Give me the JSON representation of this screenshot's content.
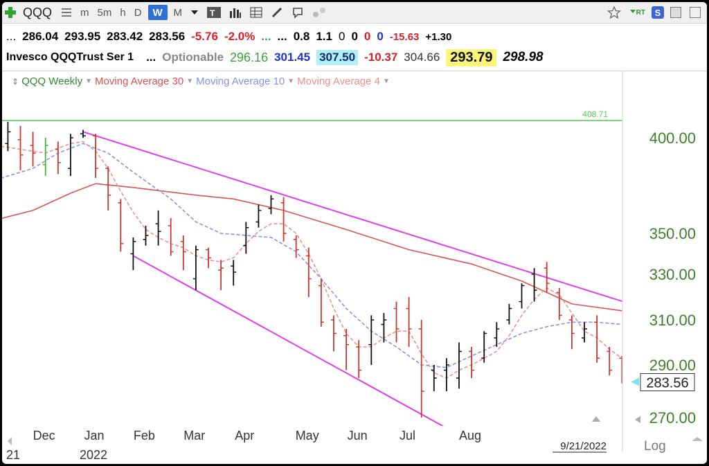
{
  "toolbar": {
    "symbol": "QQQ",
    "timeframes": [
      "m",
      "5m",
      "h",
      "D",
      "W",
      "M"
    ],
    "active_timeframe": "W",
    "icons": [
      "add-plus-icon",
      "list-icon",
      "dropdown-icon",
      "text-tool-icon",
      "bars-icon",
      "grid-icon",
      "pencil-icon",
      "annotate-icon",
      "dots-icon",
      "star-icon",
      "rt-icon",
      "s-icon",
      "save-icon",
      "close-icon"
    ],
    "rt_label": "RT",
    "s_label": "S"
  },
  "quote_row1": {
    "lead": "...",
    "open": "286.04",
    "high": "293.95",
    "low": "283.42",
    "close": "283.56",
    "change": "-5.76",
    "change_pct": "-2.0%",
    "dots_green": "...",
    "dots": "...",
    "v1": "0.8",
    "v2": "1.1",
    "z1": "0",
    "z2": "0",
    "z3": "0",
    "z4": "0",
    "v3": "-15.63",
    "v4": "+1.30"
  },
  "quote_row2": {
    "name": "Invesco QQQTrust Ser 1",
    "dots": "...",
    "optionable": "Optionable",
    "v1": "296.16",
    "v2": "301.45",
    "v3": "307.50",
    "v4": "-10.37",
    "v5": "304.66",
    "v6": "293.79",
    "v7": "298.98"
  },
  "legend": {
    "items": [
      "QQQ Weekly",
      "Moving Average 30",
      "Moving Average 10",
      "Moving Average 4"
    ],
    "colors": [
      "#2f8a2f",
      "#d9534f",
      "#8a8fe6",
      "#ef8f8f"
    ]
  },
  "chart_data": {
    "type": "line",
    "title": "",
    "xlabel": "",
    "ylabel": "",
    "ylim": [
      265,
      420
    ],
    "y_ticks": [
      400,
      350,
      330,
      310,
      290,
      270
    ],
    "y_tick_labels": [
      "400.00",
      "350.00",
      "330.00",
      "310.00",
      "290.00",
      "270.00"
    ],
    "x_labels": [
      "Dec",
      "Jan",
      "Feb",
      "Mar",
      "Apr",
      "May",
      "Jun",
      "Jul",
      "Aug"
    ],
    "x_label_week": [
      -3,
      1,
      5,
      9,
      13,
      18,
      22,
      26,
      31
    ],
    "year_labels": [
      "21",
      "2022"
    ],
    "date_stamp": "9/21/2022",
    "scale_toggle": "Log",
    "price_label": "283.56",
    "ceiling_value": 408.71,
    "ceiling_label": "408.71",
    "bars": [
      {
        "w": -6,
        "h": 404,
        "l": 392,
        "c": 396,
        "o": 399,
        "col": "green"
      },
      {
        "w": -5,
        "h": 408,
        "l": 393,
        "c": 403,
        "o": 397,
        "col": "black"
      },
      {
        "w": -4,
        "h": 406,
        "l": 383,
        "c": 391,
        "o": 399,
        "col": "red"
      },
      {
        "w": -3,
        "h": 403,
        "l": 385,
        "c": 392,
        "o": 396,
        "col": "red"
      },
      {
        "w": -2,
        "h": 400,
        "l": 380,
        "c": 396,
        "o": 386,
        "col": "green"
      },
      {
        "w": -1,
        "h": 398,
        "l": 381,
        "c": 387,
        "o": 394,
        "col": "red"
      },
      {
        "w": 0,
        "h": 402,
        "l": 380,
        "c": 400,
        "o": 384,
        "col": "black"
      },
      {
        "w": 1,
        "h": 404,
        "l": 400,
        "c": 401,
        "o": 402,
        "col": "black"
      },
      {
        "w": 2,
        "h": 402,
        "l": 379,
        "c": 384,
        "o": 401,
        "col": "red"
      },
      {
        "w": 3,
        "h": 385,
        "l": 362,
        "c": 370,
        "o": 384,
        "col": "red"
      },
      {
        "w": 4,
        "h": 368,
        "l": 341,
        "c": 345,
        "o": 366,
        "col": "red"
      },
      {
        "w": 5,
        "h": 348,
        "l": 332,
        "c": 346,
        "o": 340,
        "col": "black"
      },
      {
        "w": 6,
        "h": 354,
        "l": 344,
        "c": 349,
        "o": 347,
        "col": "black"
      },
      {
        "w": 7,
        "h": 362,
        "l": 344,
        "c": 351,
        "o": 355,
        "col": "black"
      },
      {
        "w": 8,
        "h": 358,
        "l": 339,
        "c": 341,
        "o": 354,
        "col": "red"
      },
      {
        "w": 9,
        "h": 349,
        "l": 332,
        "c": 341,
        "o": 346,
        "col": "red"
      },
      {
        "w": 10,
        "h": 344,
        "l": 323,
        "c": 342,
        "o": 328,
        "col": "black"
      },
      {
        "w": 11,
        "h": 343,
        "l": 333,
        "c": 338,
        "o": 342,
        "col": "red"
      },
      {
        "w": 12,
        "h": 337,
        "l": 323,
        "c": 333,
        "o": 332,
        "col": "red"
      },
      {
        "w": 13,
        "h": 337,
        "l": 325,
        "c": 331,
        "o": 334,
        "col": "black"
      },
      {
        "w": 14,
        "h": 356,
        "l": 340,
        "c": 353,
        "o": 344,
        "col": "black"
      },
      {
        "w": 15,
        "h": 365,
        "l": 353,
        "c": 362,
        "o": 356,
        "col": "black"
      },
      {
        "w": 16,
        "h": 370,
        "l": 360,
        "c": 368,
        "o": 363,
        "col": "black"
      },
      {
        "w": 17,
        "h": 369,
        "l": 346,
        "c": 350,
        "o": 366,
        "col": "red"
      },
      {
        "w": 18,
        "h": 349,
        "l": 338,
        "c": 342,
        "o": 347,
        "col": "red"
      },
      {
        "w": 19,
        "h": 343,
        "l": 320,
        "c": 328,
        "o": 339,
        "col": "red"
      },
      {
        "w": 20,
        "h": 328,
        "l": 307,
        "c": 309,
        "o": 325,
        "col": "red"
      },
      {
        "w": 21,
        "h": 312,
        "l": 296,
        "c": 304,
        "o": 310,
        "col": "red"
      },
      {
        "w": 22,
        "h": 306,
        "l": 288,
        "c": 299,
        "o": 303,
        "col": "red"
      },
      {
        "w": 23,
        "h": 301,
        "l": 285,
        "c": 288,
        "o": 298,
        "col": "red"
      },
      {
        "w": 24,
        "h": 312,
        "l": 290,
        "c": 310,
        "o": 299,
        "col": "black"
      },
      {
        "w": 25,
        "h": 313,
        "l": 300,
        "c": 310,
        "o": 308,
        "col": "black"
      },
      {
        "w": 26,
        "h": 318,
        "l": 300,
        "c": 306,
        "o": 315,
        "col": "red"
      },
      {
        "w": 27,
        "h": 320,
        "l": 298,
        "c": 306,
        "o": 315,
        "col": "red"
      },
      {
        "w": 28,
        "h": 310,
        "l": 270,
        "c": 280,
        "o": 306,
        "col": "red"
      },
      {
        "w": 29,
        "h": 290,
        "l": 280,
        "c": 285,
        "o": 288,
        "col": "black"
      },
      {
        "w": 30,
        "h": 293,
        "l": 280,
        "c": 290,
        "o": 288,
        "col": "black"
      },
      {
        "w": 31,
        "h": 300,
        "l": 281,
        "c": 296,
        "o": 285,
        "col": "black"
      },
      {
        "w": 32,
        "h": 298,
        "l": 285,
        "c": 288,
        "o": 296,
        "col": "red"
      },
      {
        "w": 33,
        "h": 305,
        "l": 291,
        "c": 304,
        "o": 293,
        "col": "black"
      },
      {
        "w": 34,
        "h": 309,
        "l": 298,
        "c": 306,
        "o": 302,
        "col": "black"
      },
      {
        "w": 35,
        "h": 317,
        "l": 308,
        "c": 315,
        "o": 310,
        "col": "black"
      },
      {
        "w": 36,
        "h": 326,
        "l": 315,
        "c": 325,
        "o": 318,
        "col": "black"
      },
      {
        "w": 37,
        "h": 333,
        "l": 318,
        "c": 323,
        "o": 330,
        "col": "black"
      },
      {
        "w": 38,
        "h": 336,
        "l": 322,
        "c": 326,
        "o": 333,
        "col": "red"
      },
      {
        "w": 39,
        "h": 324,
        "l": 310,
        "c": 312,
        "o": 322,
        "col": "red"
      },
      {
        "w": 40,
        "h": 312,
        "l": 297,
        "c": 304,
        "o": 310,
        "col": "red"
      },
      {
        "w": 41,
        "h": 309,
        "l": 300,
        "c": 306,
        "o": 302,
        "col": "black"
      },
      {
        "w": 42,
        "h": 312,
        "l": 291,
        "c": 293,
        "o": 309,
        "col": "red"
      },
      {
        "w": 43,
        "h": 298,
        "l": 286,
        "c": 288,
        "o": 296,
        "col": "red"
      },
      {
        "w": 44,
        "h": 294,
        "l": 283,
        "c": 284,
        "o": 293,
        "col": "red"
      }
    ],
    "series": [
      {
        "name": "Moving Average 30",
        "color": "#d9534f",
        "dash": false,
        "points": [
          [
            -6,
            357
          ],
          [
            -3,
            362
          ],
          [
            0,
            371
          ],
          [
            2,
            376
          ],
          [
            5,
            374
          ],
          [
            10,
            370
          ],
          [
            13,
            368
          ],
          [
            17,
            362
          ],
          [
            22,
            352
          ],
          [
            27,
            342
          ],
          [
            32,
            335
          ],
          [
            36,
            327
          ],
          [
            40,
            317
          ],
          [
            44,
            314
          ]
        ]
      },
      {
        "name": "Moving Average 10",
        "color": "#8a8fe6",
        "dash": true,
        "points": [
          [
            -6,
            378
          ],
          [
            -3,
            384
          ],
          [
            -1,
            392
          ],
          [
            1,
            397
          ],
          [
            3,
            392
          ],
          [
            5,
            382
          ],
          [
            8,
            368
          ],
          [
            10,
            356
          ],
          [
            12,
            350
          ],
          [
            14,
            349
          ],
          [
            16,
            348
          ],
          [
            18,
            341
          ],
          [
            20,
            328
          ],
          [
            22,
            315
          ],
          [
            24,
            305
          ],
          [
            26,
            298
          ],
          [
            28,
            290
          ],
          [
            30,
            289
          ],
          [
            32,
            294
          ],
          [
            34,
            299
          ],
          [
            36,
            304
          ],
          [
            38,
            307
          ],
          [
            40,
            309
          ],
          [
            42,
            309
          ],
          [
            44,
            308
          ]
        ]
      },
      {
        "name": "Moving Average 4",
        "color": "#ef8f8f",
        "dash": true,
        "points": [
          [
            -6,
            396
          ],
          [
            -4,
            394
          ],
          [
            -2,
            392
          ],
          [
            0,
            397
          ],
          [
            1,
            398
          ],
          [
            2,
            393
          ],
          [
            3,
            384
          ],
          [
            4,
            372
          ],
          [
            5,
            361
          ],
          [
            6,
            352
          ],
          [
            7,
            348
          ],
          [
            8,
            345
          ],
          [
            9,
            343
          ],
          [
            10,
            339
          ],
          [
            11,
            337
          ],
          [
            12,
            336
          ],
          [
            13,
            338
          ],
          [
            14,
            345
          ],
          [
            15,
            351
          ],
          [
            16,
            355
          ],
          [
            17,
            355
          ],
          [
            18,
            350
          ],
          [
            19,
            340
          ],
          [
            20,
            328
          ],
          [
            21,
            315
          ],
          [
            22,
            304
          ],
          [
            23,
            298
          ],
          [
            24,
            298
          ],
          [
            25,
            302
          ],
          [
            26,
            305
          ],
          [
            27,
            305
          ],
          [
            28,
            295
          ],
          [
            29,
            287
          ],
          [
            30,
            285
          ],
          [
            31,
            288
          ],
          [
            32,
            290
          ],
          [
            33,
            293
          ],
          [
            34,
            296
          ],
          [
            35,
            303
          ],
          [
            36,
            312
          ],
          [
            37,
            319
          ],
          [
            38,
            324
          ],
          [
            39,
            321
          ],
          [
            40,
            313
          ],
          [
            41,
            305
          ],
          [
            42,
            302
          ],
          [
            43,
            297
          ],
          [
            44,
            293
          ]
        ]
      }
    ],
    "trendlines": [
      {
        "name": "upper-trendline",
        "color": "#e040e8",
        "from": [
          1,
          403
        ],
        "to": [
          47,
          313
        ]
      },
      {
        "name": "lower-trendline",
        "color": "#e040e8",
        "from": [
          5,
          339
        ],
        "to": [
          30,
          266
        ]
      }
    ]
  }
}
